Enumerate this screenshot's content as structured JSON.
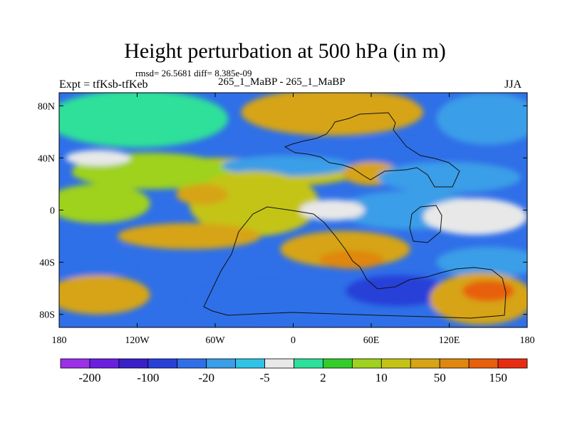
{
  "chart_data": {
    "type": "heatmap",
    "title": "Height perturbation at 500 hPa (in m)",
    "stats_text": "rmsd= 26.5681 diff= 8.385e-09",
    "left_label": "Expt = tfKsb-tfKeb",
    "center_label": "265_1_MaBP - 265_1_MaBP",
    "right_label": "JJA",
    "xlim": [
      -180,
      180
    ],
    "ylim": [
      -90,
      90
    ],
    "x_ticks": [
      {
        "value": -180,
        "label": "180"
      },
      {
        "value": -120,
        "label": "120W"
      },
      {
        "value": -60,
        "label": "60W"
      },
      {
        "value": 0,
        "label": "0"
      },
      {
        "value": 60,
        "label": "60E"
      },
      {
        "value": 120,
        "label": "120E"
      },
      {
        "value": 180,
        "label": "180"
      }
    ],
    "y_ticks": [
      {
        "value": 80,
        "label": "80N"
      },
      {
        "value": 40,
        "label": "40N"
      },
      {
        "value": 0,
        "label": "0"
      },
      {
        "value": -40,
        "label": "40S"
      },
      {
        "value": -80,
        "label": "80S"
      }
    ],
    "colorbar": {
      "colors": [
        "#9b30e8",
        "#6a1ee0",
        "#3a20c8",
        "#2840d8",
        "#2f6fe8",
        "#3a9ee8",
        "#2fc3e6",
        "#e8e8e8",
        "#2ee09a",
        "#33cc2a",
        "#9ed21e",
        "#c4c416",
        "#d6a414",
        "#e0870e",
        "#e85f0c",
        "#e82b10"
      ],
      "labels": [
        {
          "boundary": 1,
          "text": "-200"
        },
        {
          "boundary": 3,
          "text": "-100"
        },
        {
          "boundary": 5,
          "text": "-20"
        },
        {
          "boundary": 7,
          "text": "-5"
        },
        {
          "boundary": 9,
          "text": "2"
        },
        {
          "boundary": 11,
          "text": "10"
        },
        {
          "boundary": 13,
          "text": "50"
        },
        {
          "boundary": 15,
          "text": "150"
        }
      ]
    },
    "field_regions": [
      {
        "level": 8,
        "lon": -120,
        "lat": 70,
        "rx": 70,
        "ry": 22
      },
      {
        "level": 13,
        "lon": 40,
        "lat": 80,
        "rx": 55,
        "ry": 12
      },
      {
        "level": 12,
        "lon": 30,
        "lat": 75,
        "rx": 70,
        "ry": 18
      },
      {
        "level": 5,
        "lon": 150,
        "lat": 70,
        "rx": 40,
        "ry": 20
      },
      {
        "level": 4,
        "lon": 70,
        "lat": 45,
        "rx": 40,
        "ry": 10
      },
      {
        "level": 11,
        "lon": -60,
        "lat": 28,
        "rx": 110,
        "ry": 12
      },
      {
        "level": 10,
        "lon": -110,
        "lat": 30,
        "rx": 60,
        "ry": 14
      },
      {
        "level": 5,
        "lon": -5,
        "lat": 34,
        "rx": 50,
        "ry": 8
      },
      {
        "level": 12,
        "lon": 60,
        "lat": 28,
        "rx": 22,
        "ry": 9
      },
      {
        "level": 5,
        "lon": 120,
        "lat": 25,
        "rx": 55,
        "ry": 12
      },
      {
        "level": 7,
        "lon": -150,
        "lat": 40,
        "rx": 25,
        "ry": 6
      },
      {
        "level": 10,
        "lon": -150,
        "lat": 5,
        "rx": 40,
        "ry": 15
      },
      {
        "level": 11,
        "lon": -30,
        "lat": 5,
        "rx": 50,
        "ry": 25
      },
      {
        "level": 12,
        "lon": -70,
        "lat": 12,
        "rx": 20,
        "ry": 8
      },
      {
        "level": 5,
        "lon": 90,
        "lat": 0,
        "rx": 55,
        "ry": 15
      },
      {
        "level": 7,
        "lon": 140,
        "lat": -5,
        "rx": 40,
        "ry": 14
      },
      {
        "level": 7,
        "lon": 30,
        "lat": 0,
        "rx": 25,
        "ry": 8
      },
      {
        "level": 4,
        "lon": -160,
        "lat": -38,
        "rx": 40,
        "ry": 14
      },
      {
        "level": 12,
        "lon": -80,
        "lat": -20,
        "rx": 55,
        "ry": 10
      },
      {
        "level": 12,
        "lon": 40,
        "lat": -30,
        "rx": 50,
        "ry": 14
      },
      {
        "level": 13,
        "lon": 45,
        "lat": -38,
        "rx": 25,
        "ry": 7
      },
      {
        "level": 5,
        "lon": 150,
        "lat": -40,
        "rx": 40,
        "ry": 12
      },
      {
        "level": 12,
        "lon": -150,
        "lat": -65,
        "rx": 40,
        "ry": 15
      },
      {
        "level": 4,
        "lon": 30,
        "lat": -70,
        "rx": 110,
        "ry": 15
      },
      {
        "level": 3,
        "lon": 80,
        "lat": -62,
        "rx": 40,
        "ry": 12
      },
      {
        "level": 12,
        "lon": 145,
        "lat": -68,
        "rx": 40,
        "ry": 20
      },
      {
        "level": 14,
        "lon": 150,
        "lat": -62,
        "rx": 20,
        "ry": 8
      }
    ]
  }
}
